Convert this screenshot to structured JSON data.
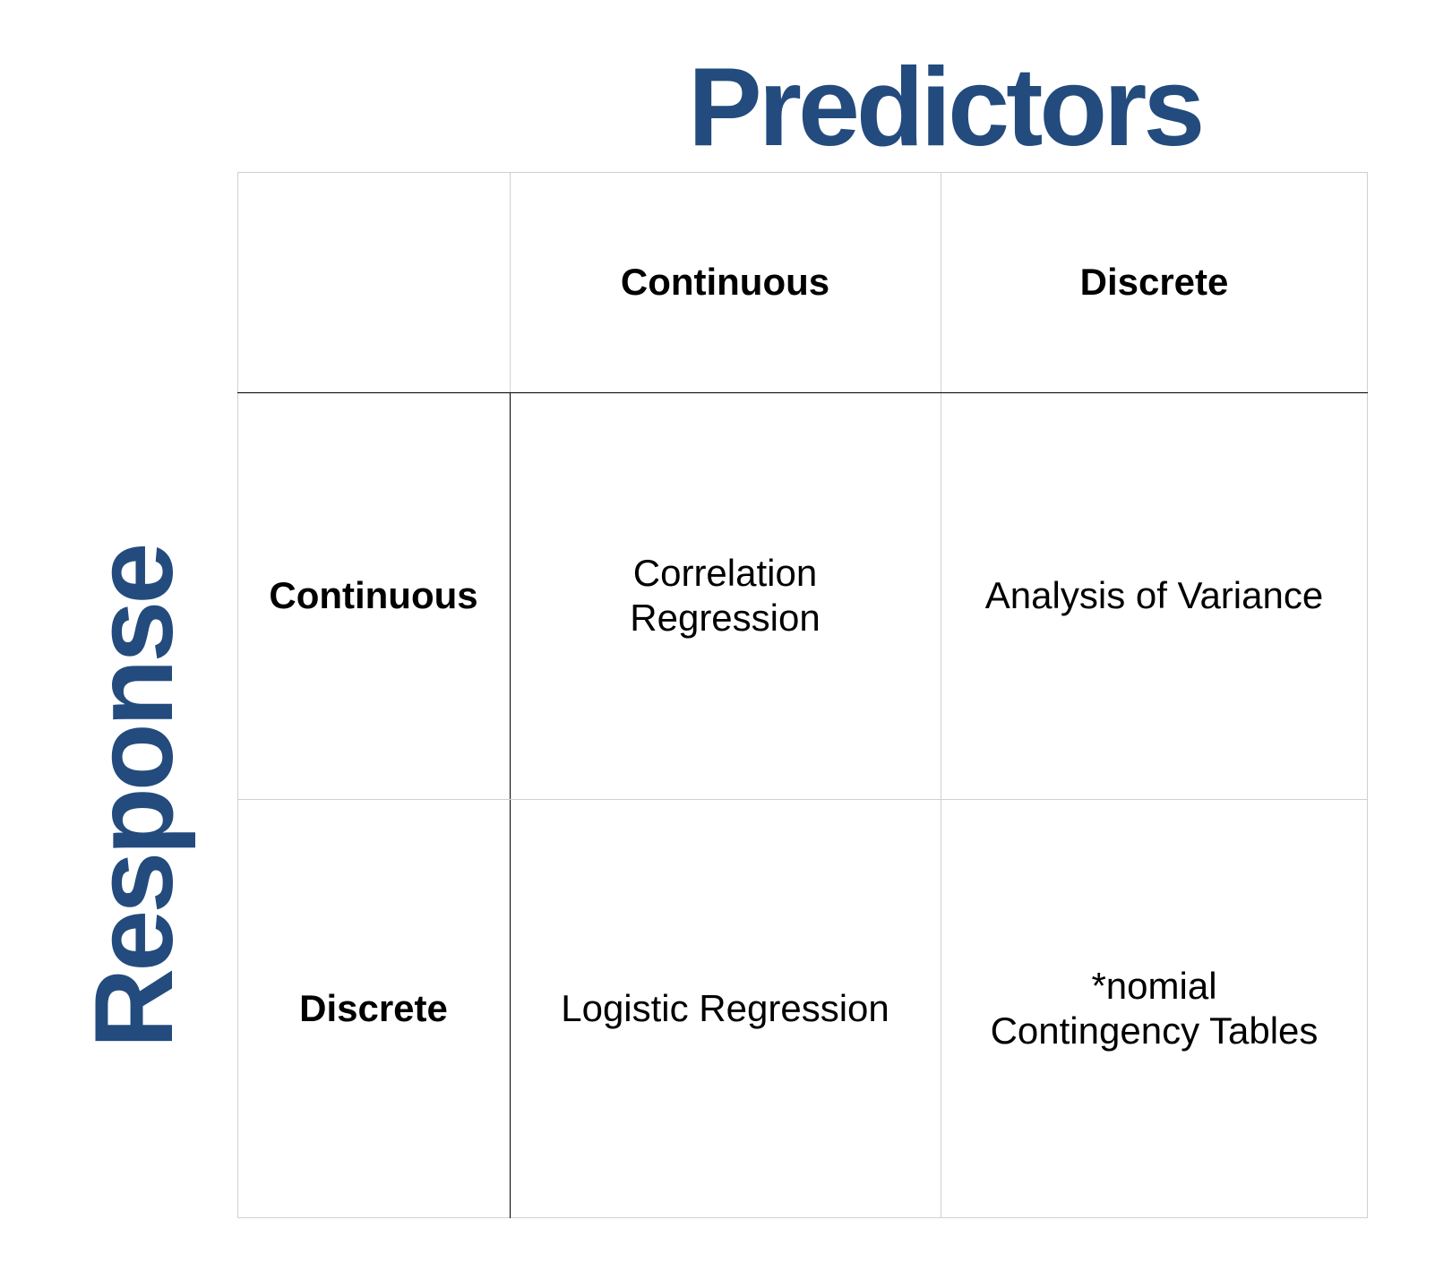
{
  "titles": {
    "columns": "Predictors",
    "rows": "Response"
  },
  "header_row": [
    "",
    "Continuous",
    "Discrete"
  ],
  "rows": [
    {
      "label": "Continuous",
      "cells": [
        "Correlation\nRegression",
        "Analysis of Variance"
      ]
    },
    {
      "label": "Discrete",
      "cells": [
        "Logistic Regression",
        "*nomial\nContingency Tables"
      ]
    }
  ],
  "colors": {
    "title": "#234b7d",
    "grid_light": "#d0d0d0",
    "grid_dark": "#000000"
  }
}
